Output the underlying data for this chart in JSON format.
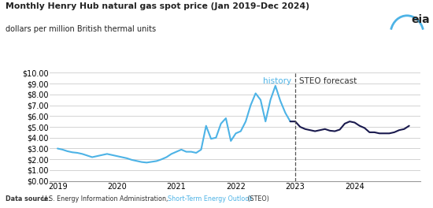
{
  "title": "Monthly Henry Hub natural gas spot price (Jan 2019–Dec 2024)",
  "subtitle": "dollars per million British thermal units",
  "history_label": "history",
  "forecast_label": "STEO forecast",
  "history_color": "#4db3e6",
  "forecast_color": "#1a1a4e",
  "divider_x": 2023.0,
  "ylim": [
    0,
    10.0
  ],
  "yticks": [
    0,
    1,
    2,
    3,
    4,
    5,
    6,
    7,
    8,
    9,
    10
  ],
  "xticks": [
    2019,
    2020,
    2021,
    2022,
    2023,
    2024
  ],
  "history_dates": [
    2019.0,
    2019.0833,
    2019.1667,
    2019.25,
    2019.3333,
    2019.4167,
    2019.5,
    2019.5833,
    2019.6667,
    2019.75,
    2019.8333,
    2019.9167,
    2020.0,
    2020.0833,
    2020.1667,
    2020.25,
    2020.3333,
    2020.4167,
    2020.5,
    2020.5833,
    2020.6667,
    2020.75,
    2020.8333,
    2020.9167,
    2021.0,
    2021.0833,
    2021.1667,
    2021.25,
    2021.3333,
    2021.4167,
    2021.5,
    2021.5833,
    2021.6667,
    2021.75,
    2021.8333,
    2021.9167,
    2022.0,
    2022.0833,
    2022.1667,
    2022.25,
    2022.3333,
    2022.4167,
    2022.5,
    2022.5833,
    2022.6667,
    2022.75,
    2022.8333,
    2022.9167
  ],
  "history_values": [
    3.0,
    2.9,
    2.75,
    2.65,
    2.6,
    2.5,
    2.35,
    2.2,
    2.3,
    2.4,
    2.5,
    2.4,
    2.3,
    2.2,
    2.1,
    1.95,
    1.85,
    1.75,
    1.7,
    1.77,
    1.84,
    2.0,
    2.2,
    2.5,
    2.7,
    2.9,
    2.7,
    2.7,
    2.6,
    2.9,
    5.1,
    3.9,
    4.0,
    5.3,
    5.8,
    3.7,
    4.4,
    4.6,
    5.5,
    7.0,
    8.1,
    7.5,
    5.5,
    7.5,
    8.8,
    7.4,
    6.3,
    5.5
  ],
  "forecast_dates": [
    2023.0,
    2023.0833,
    2023.1667,
    2023.25,
    2023.3333,
    2023.4167,
    2023.5,
    2023.5833,
    2023.6667,
    2023.75,
    2023.8333,
    2023.9167,
    2024.0,
    2024.0833,
    2024.1667,
    2024.25,
    2024.3333,
    2024.4167,
    2024.5,
    2024.5833,
    2024.6667,
    2024.75,
    2024.8333,
    2024.9167
  ],
  "forecast_values": [
    5.5,
    5.0,
    4.8,
    4.7,
    4.6,
    4.7,
    4.8,
    4.65,
    4.6,
    4.75,
    5.3,
    5.5,
    5.4,
    5.1,
    4.9,
    4.5,
    4.5,
    4.4,
    4.4,
    4.4,
    4.5,
    4.7,
    4.8,
    5.1
  ],
  "bg_color": "#ffffff",
  "grid_color": "#cccccc",
  "eia_color": "#4db3e6"
}
